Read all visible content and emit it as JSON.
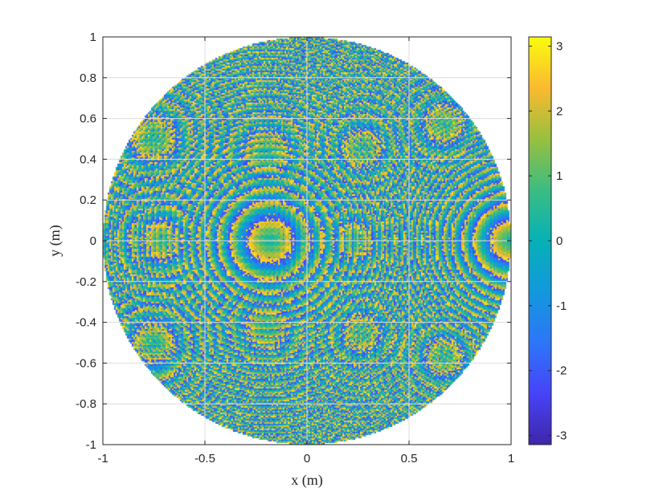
{
  "chart_data": [
    {
      "type": "heatmap",
      "title": "",
      "xlabel": "x (m)",
      "ylabel": "y (m)",
      "xlim": [
        -1,
        1
      ],
      "ylim": [
        -1,
        1
      ],
      "xticks": [
        -1,
        -0.5,
        0,
        0.5,
        1
      ],
      "yticks": [
        -1,
        -0.8,
        -0.6,
        -0.4,
        -0.2,
        0,
        0.2,
        0.4,
        0.6,
        0.8,
        1
      ],
      "xtick_labels": [
        "-1",
        "-0.5",
        "0",
        "0.5",
        "1"
      ],
      "ytick_labels": [
        "-1",
        "-0.8",
        "-0.6",
        "-0.4",
        "-0.2",
        "0",
        "0.2",
        "0.4",
        "0.6",
        "0.8",
        "1"
      ],
      "grid": true,
      "mask": "circle of radius 1 centered at origin",
      "colormap": "parula",
      "prominent_features": [
        {
          "x": -0.18,
          "y": 0.0,
          "type": "ring center"
        },
        {
          "x": 1.0,
          "y": 0.0,
          "type": "ring center"
        },
        {
          "x": -0.7,
          "y": 0.0,
          "type": "ring center"
        },
        {
          "x": 0.23,
          "y": 0.0,
          "type": "ring center"
        },
        {
          "x": -0.75,
          "y": 0.5,
          "type": "ring center"
        },
        {
          "x": -0.75,
          "y": -0.5,
          "type": "ring center"
        },
        {
          "x": 0.27,
          "y": 0.45,
          "type": "ring center"
        },
        {
          "x": 0.27,
          "y": -0.45,
          "type": "ring center"
        },
        {
          "x": -0.2,
          "y": 0.43,
          "type": "ring center"
        },
        {
          "x": -0.2,
          "y": -0.43,
          "type": "ring center"
        },
        {
          "x": 0.67,
          "y": 0.57,
          "type": "ring center"
        },
        {
          "x": 0.67,
          "y": -0.57,
          "type": "ring center"
        }
      ]
    },
    {
      "type": "colorbar",
      "clim": [
        -3.1416,
        3.1416
      ],
      "ticks": [
        -3,
        -2,
        -1,
        0,
        1,
        2,
        3
      ],
      "tick_labels": [
        "-3",
        "-2",
        "-1",
        "0",
        "1",
        "2",
        "3"
      ],
      "colormap": "parula"
    }
  ]
}
